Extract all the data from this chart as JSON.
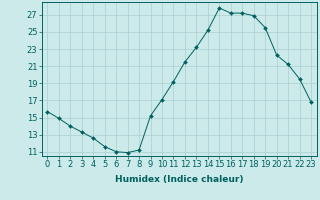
{
  "x_values": [
    0,
    1,
    2,
    3,
    4,
    5,
    6,
    7,
    8,
    9,
    10,
    11,
    12,
    13,
    14,
    15,
    16,
    17,
    18,
    19,
    20,
    21,
    22,
    23
  ],
  "y_values": [
    15.7,
    14.9,
    14.0,
    13.3,
    12.6,
    11.6,
    11.0,
    10.9,
    11.2,
    15.2,
    17.1,
    19.2,
    21.5,
    23.2,
    25.2,
    27.8,
    27.2,
    27.2,
    26.9,
    25.5,
    22.3,
    21.2,
    19.5,
    16.8
  ],
  "line_color": "#006060",
  "marker": "D",
  "marker_size": 2.0,
  "background_color": "#cceaea",
  "grid_color": "#aacece",
  "xlabel": "Humidex (Indice chaleur)",
  "xlim": [
    -0.5,
    23.5
  ],
  "ylim": [
    10.5,
    28.5
  ],
  "yticks": [
    11,
    13,
    15,
    17,
    19,
    21,
    23,
    25,
    27
  ],
  "xticks": [
    0,
    1,
    2,
    3,
    4,
    5,
    6,
    7,
    8,
    9,
    10,
    11,
    12,
    13,
    14,
    15,
    16,
    17,
    18,
    19,
    20,
    21,
    22,
    23
  ],
  "label_fontsize": 6.5,
  "tick_fontsize": 6.0,
  "linewidth": 0.7
}
